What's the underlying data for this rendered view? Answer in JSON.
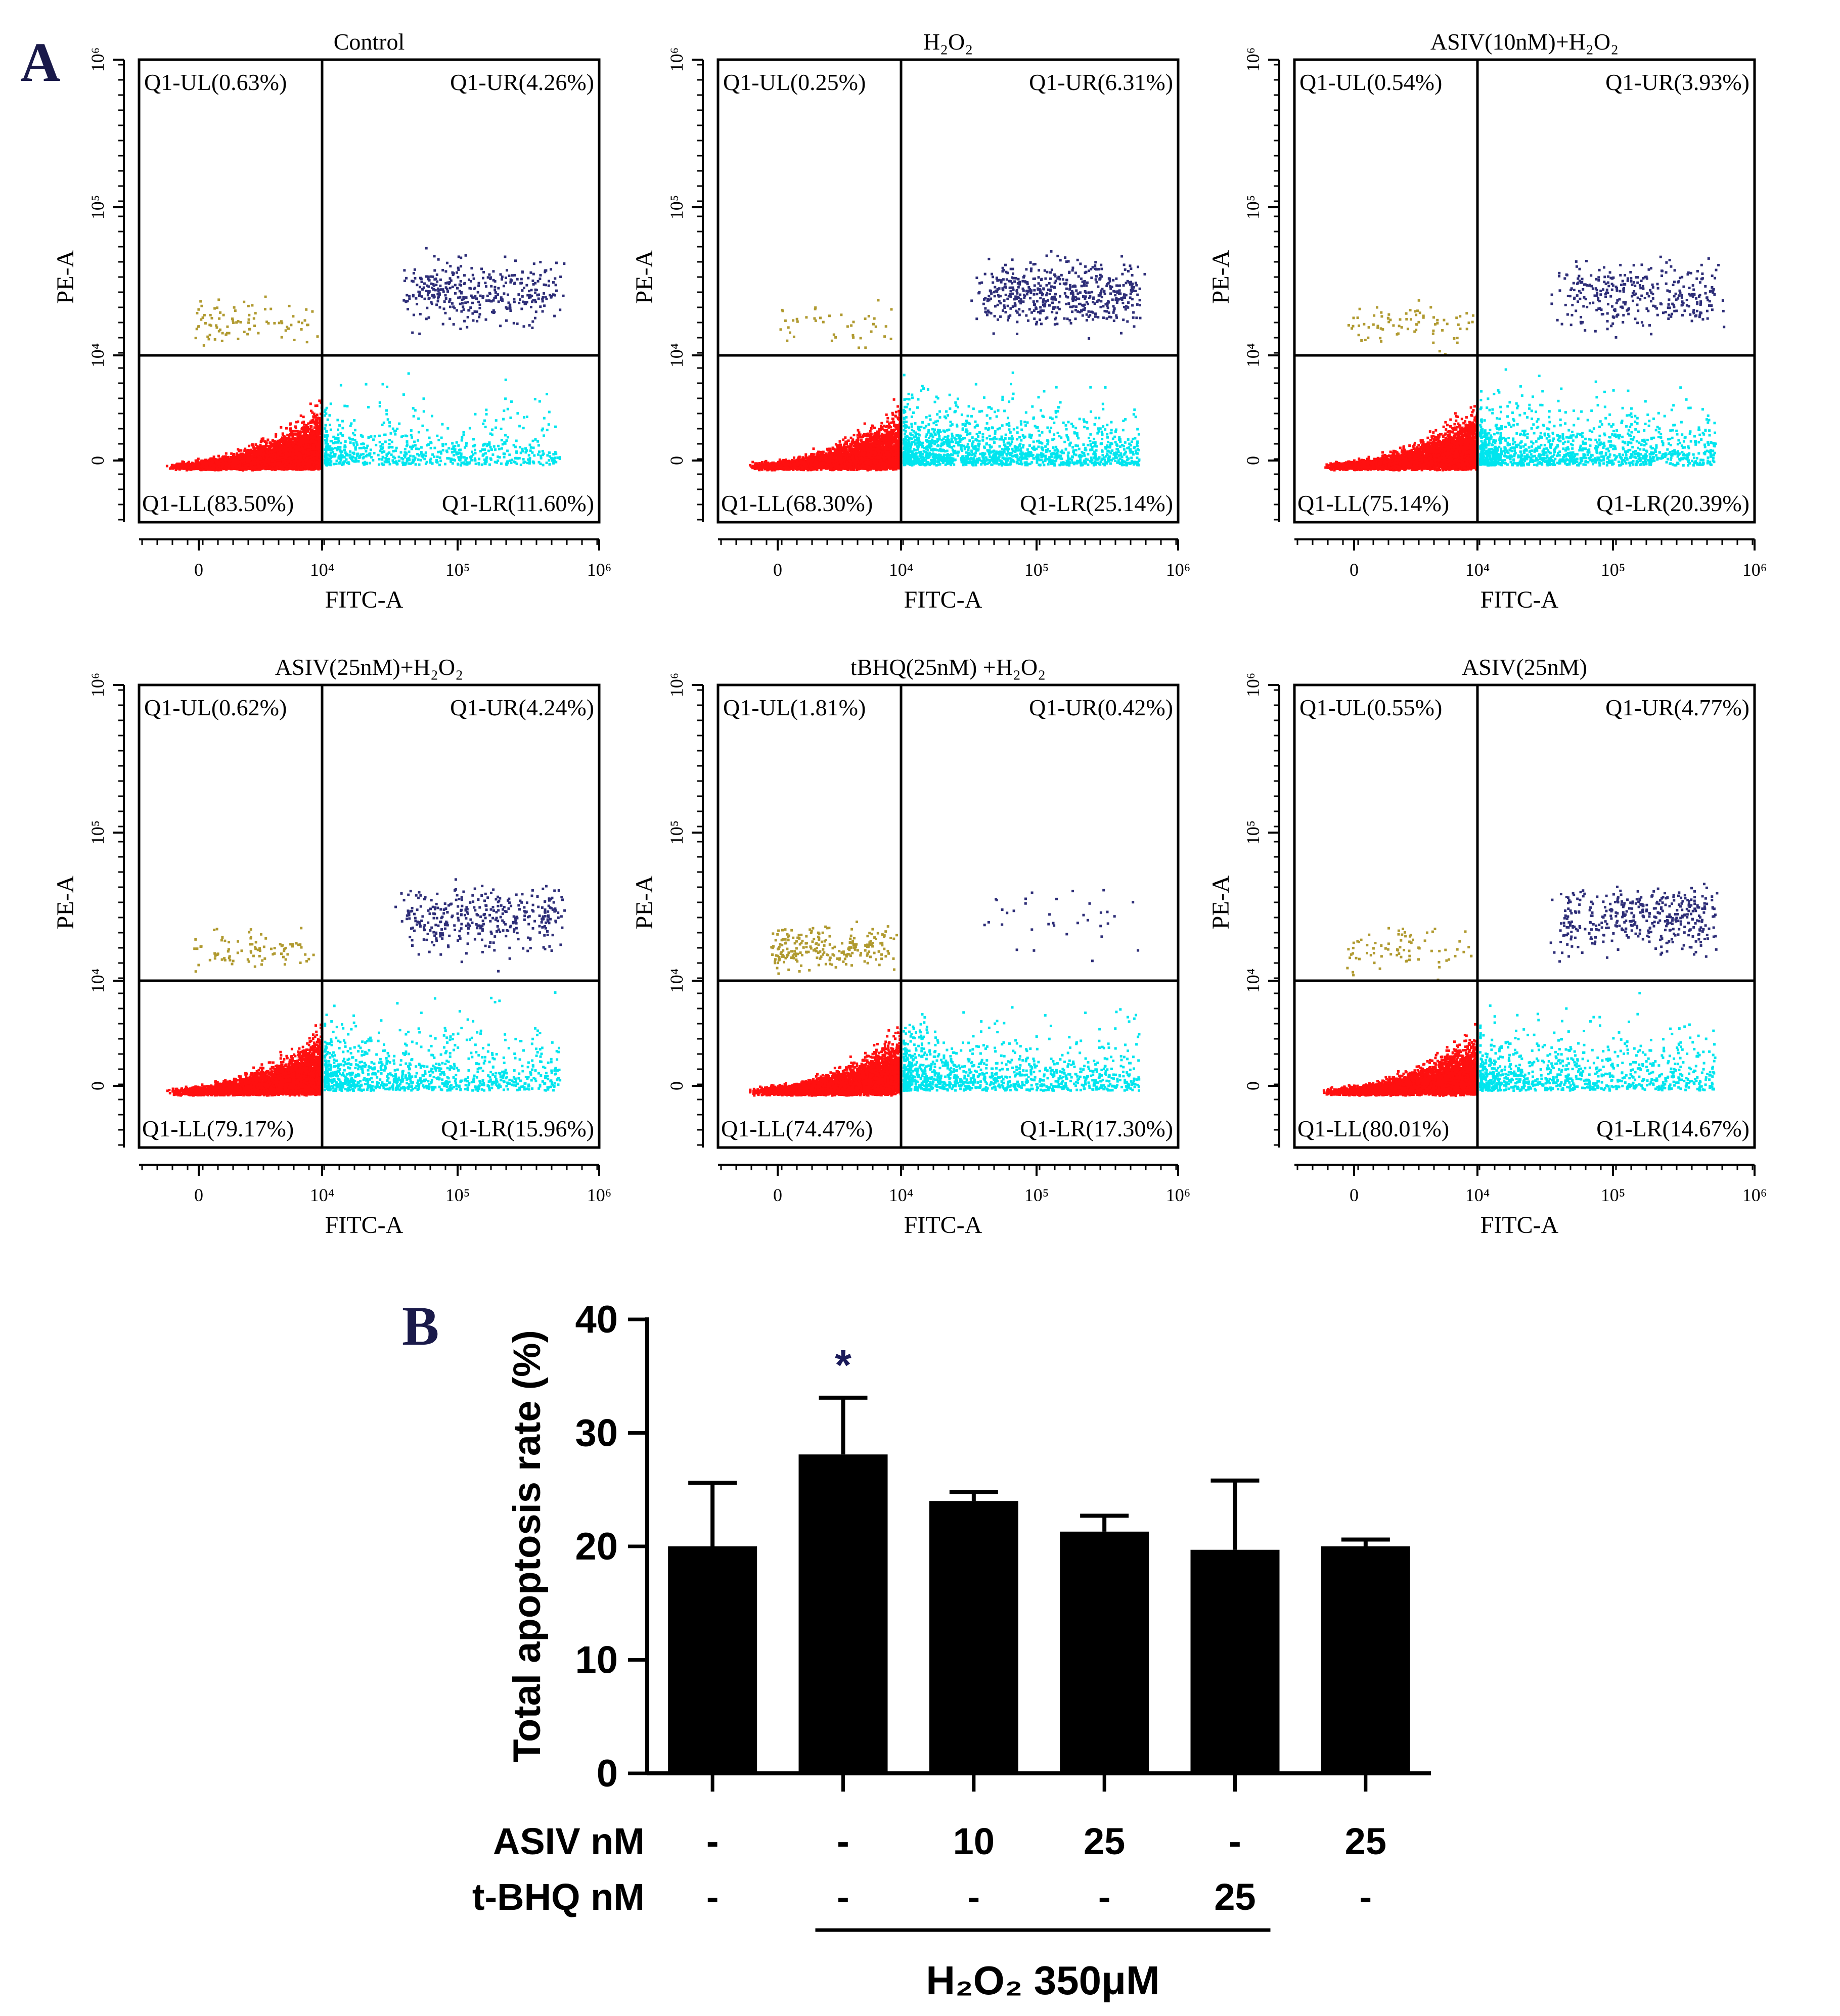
{
  "panel_labels": {
    "a": "A",
    "b": "B"
  },
  "colors": {
    "live": "#ff1010",
    "early": "#00e5ee",
    "late": "#2e2e78",
    "necrotic": "#b09a30",
    "bar": "#000000",
    "sig": "#1a1a5a"
  },
  "chart_data": [
    {
      "type": "scatter",
      "title": "Control",
      "xlabel": "FITC-A",
      "ylabel": "PE-A",
      "x_ticks": [
        "0",
        "10⁴",
        "10⁵",
        "10⁶"
      ],
      "y_ticks": [
        "0",
        "10⁴",
        "10⁵",
        "10⁶"
      ],
      "quadrants": {
        "UL": "Q1-UL(0.63%)",
        "UR": "Q1-UR(4.26%)",
        "LL": "Q1-LL(83.50%)",
        "LR": "Q1-LR(11.60%)"
      },
      "percent": {
        "UL": 0.63,
        "UR": 4.26,
        "LL": 83.5,
        "LR": 11.6
      }
    },
    {
      "type": "scatter",
      "title": "H₂O₂",
      "xlabel": "FITC-A",
      "ylabel": "PE-A",
      "x_ticks": [
        "0",
        "10⁴",
        "10⁵",
        "10⁶"
      ],
      "y_ticks": [
        "0",
        "10⁴",
        "10⁵",
        "10⁶"
      ],
      "quadrants": {
        "UL": "Q1-UL(0.25%)",
        "UR": "Q1-UR(6.31%)",
        "LL": "Q1-LL(68.30%)",
        "LR": "Q1-LR(25.14%)"
      },
      "percent": {
        "UL": 0.25,
        "UR": 6.31,
        "LL": 68.3,
        "LR": 25.14
      }
    },
    {
      "type": "scatter",
      "title": "ASIV(10nM)+H₂O₂",
      "xlabel": "FITC-A",
      "ylabel": "PE-A",
      "x_ticks": [
        "0",
        "10⁴",
        "10⁵",
        "10⁶"
      ],
      "y_ticks": [
        "0",
        "10⁴",
        "10⁵",
        "10⁶"
      ],
      "quadrants": {
        "UL": "Q1-UL(0.54%)",
        "UR": "Q1-UR(3.93%)",
        "LL": "Q1-LL(75.14%)",
        "LR": "Q1-LR(20.39%)"
      },
      "percent": {
        "UL": 0.54,
        "UR": 3.93,
        "LL": 75.14,
        "LR": 20.39
      }
    },
    {
      "type": "scatter",
      "title": "ASIV(25nM)+H₂O₂",
      "xlabel": "FITC-A",
      "ylabel": "PE-A",
      "x_ticks": [
        "0",
        "10⁴",
        "10⁵",
        "10⁶"
      ],
      "y_ticks": [
        "0",
        "10⁴",
        "10⁵",
        "10⁶"
      ],
      "quadrants": {
        "UL": "Q1-UL(0.62%)",
        "UR": "Q1-UR(4.24%)",
        "LL": "Q1-LL(79.17%)",
        "LR": "Q1-LR(15.96%)"
      },
      "percent": {
        "UL": 0.62,
        "UR": 4.24,
        "LL": 79.17,
        "LR": 15.96
      }
    },
    {
      "type": "scatter",
      "title": "tBHQ(25nM) +H₂O₂",
      "xlabel": "FITC-A",
      "ylabel": "PE-A",
      "x_ticks": [
        "0",
        "10⁴",
        "10⁵",
        "10⁶"
      ],
      "y_ticks": [
        "0",
        "10⁴",
        "10⁵",
        "10⁶"
      ],
      "quadrants": {
        "UL": "Q1-UL(1.81%)",
        "UR": "Q1-UR(0.42%)",
        "LL": "Q1-LL(74.47%)",
        "LR": "Q1-LR(17.30%)"
      },
      "percent": {
        "UL": 1.81,
        "UR": 0.42,
        "LL": 74.47,
        "LR": 17.3
      }
    },
    {
      "type": "scatter",
      "title": "ASIV(25nM)",
      "xlabel": "FITC-A",
      "ylabel": "PE-A",
      "x_ticks": [
        "0",
        "10⁴",
        "10⁵",
        "10⁶"
      ],
      "y_ticks": [
        "0",
        "10⁴",
        "10⁵",
        "10⁶"
      ],
      "quadrants": {
        "UL": "Q1-UL(0.55%)",
        "UR": "Q1-UR(4.77%)",
        "LL": "Q1-LL(80.01%)",
        "LR": "Q1-LR(14.67%)"
      },
      "percent": {
        "UL": 0.55,
        "UR": 4.77,
        "LL": 80.01,
        "LR": 14.67
      }
    },
    {
      "type": "bar",
      "ylabel": "Total apoptosis rate (%)",
      "ylim": [
        0,
        40
      ],
      "y_ticks": [
        0,
        10,
        20,
        30,
        40
      ],
      "values": [
        20.0,
        28.1,
        24.0,
        21.3,
        19.7,
        20.0
      ],
      "errors": [
        5.6,
        5.0,
        0.8,
        1.4,
        6.1,
        0.6
      ],
      "significance": [
        "",
        "*",
        "",
        "",
        "",
        ""
      ],
      "rows": [
        {
          "label": "ASIV nM",
          "values": [
            "-",
            "-",
            "10",
            "25",
            "-",
            "25"
          ]
        },
        {
          "label": "t-BHQ nM",
          "values": [
            "-",
            "-",
            "-",
            "-",
            "25",
            "-"
          ]
        }
      ],
      "bracket_label": "H₂O₂  350μM",
      "bracket_span": [
        2,
        5
      ]
    }
  ]
}
